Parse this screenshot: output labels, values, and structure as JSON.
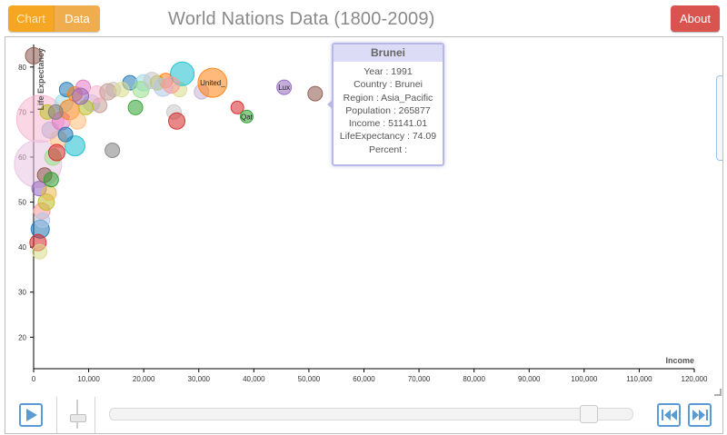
{
  "header": {
    "tabs": [
      {
        "label": "Chart",
        "active": true
      },
      {
        "label": "Data",
        "active": false
      }
    ],
    "title": "World Nations Data (1800-2009)",
    "about_label": "About"
  },
  "tooltip": {
    "country_title": "Brunei",
    "lines": [
      "Year : 1991",
      "Country : Brunei",
      "Region : Asia_Pacific",
      "Population : 265877",
      "Income : 51141.01",
      "LifeExpectancy : 74.09",
      "Percent :"
    ]
  },
  "chart_data": {
    "type": "scatter",
    "title": "World Nations Data (1800-2009)",
    "xlabel": "Income",
    "ylabel": "Life Expectancy",
    "xlim": [
      0,
      120000
    ],
    "ylim": [
      13,
      85
    ],
    "xticks": [
      "0",
      "10,000",
      "20,000",
      "30,000",
      "40,000",
      "50,000",
      "60,000",
      "70,000",
      "80,000",
      "90,000",
      "100,000",
      "110,000",
      "120,000"
    ],
    "xtick_values": [
      0,
      10000,
      20000,
      30000,
      40000,
      50000,
      60000,
      70000,
      80000,
      90000,
      100000,
      110000,
      120000
    ],
    "yticks": [
      "20",
      "30",
      "40",
      "50",
      "60",
      "70",
      "80"
    ],
    "ytick_values": [
      20,
      30,
      40,
      50,
      60,
      70,
      80
    ],
    "points": [
      {
        "x": 0,
        "y": 82.5,
        "r": 9,
        "color": "#8c564b"
      },
      {
        "x": 1200,
        "y": 68.5,
        "r": 26,
        "color": "#f7b6d2"
      },
      {
        "x": 800,
        "y": 58.5,
        "r": 26,
        "color": "#e7c3e0"
      },
      {
        "x": 2500,
        "y": 70,
        "r": 8,
        "color": "#bcbd22"
      },
      {
        "x": 5500,
        "y": 72,
        "r": 10,
        "color": "#9edae5"
      },
      {
        "x": 6000,
        "y": 75,
        "r": 8,
        "color": "#1f77b4"
      },
      {
        "x": 7500,
        "y": 74,
        "r": 8,
        "color": "#ff7f0e"
      },
      {
        "x": 9000,
        "y": 75.5,
        "r": 8,
        "color": "#e377c2"
      },
      {
        "x": 10500,
        "y": 72,
        "r": 9,
        "color": "#aec7e8"
      },
      {
        "x": 12000,
        "y": 71.5,
        "r": 8,
        "color": "#c49c94"
      },
      {
        "x": 14500,
        "y": 75,
        "r": 8,
        "color": "#c7c7c7"
      },
      {
        "x": 17500,
        "y": 76.5,
        "r": 8,
        "color": "#1f77b4"
      },
      {
        "x": 18500,
        "y": 71,
        "r": 8,
        "color": "#2ca02c"
      },
      {
        "x": 20000,
        "y": 76.5,
        "r": 9,
        "color": "#9edae5"
      },
      {
        "x": 22500,
        "y": 76.5,
        "r": 8,
        "color": "#bcbd22"
      },
      {
        "x": 24000,
        "y": 77,
        "r": 8,
        "color": "#ff7f0e"
      },
      {
        "x": 25500,
        "y": 70,
        "r": 8,
        "color": "#c7c7c7"
      },
      {
        "x": 26000,
        "y": 68,
        "r": 9,
        "color": "#d62728"
      },
      {
        "x": 26500,
        "y": 75,
        "r": 8,
        "color": "#dbdb8d"
      },
      {
        "x": 27000,
        "y": 78.5,
        "r": 13,
        "color": "#17becf"
      },
      {
        "x": 30500,
        "y": 74.5,
        "r": 8,
        "color": "#c5b0d5"
      },
      {
        "x": 32500,
        "y": 76.5,
        "r": 16,
        "color": "#ff7f0e",
        "label": "United_"
      },
      {
        "x": 37000,
        "y": 71,
        "r": 7,
        "color": "#d62728"
      },
      {
        "x": 38700,
        "y": 69,
        "r": 7,
        "color": "#2ca02c",
        "label": "Qat"
      },
      {
        "x": 45500,
        "y": 75.5,
        "r": 8,
        "color": "#9467bd",
        "label": "Lux"
      },
      {
        "x": 51141,
        "y": 74.09,
        "r": 8,
        "color": "#8c564b"
      },
      {
        "x": 14300,
        "y": 61.5,
        "r": 8,
        "color": "#7f7f7f"
      },
      {
        "x": 7500,
        "y": 62.5,
        "r": 11,
        "color": "#17becf"
      },
      {
        "x": 1500,
        "y": 48,
        "r": 9,
        "color": "#ff9896"
      },
      {
        "x": 1200,
        "y": 44,
        "r": 10,
        "color": "#1f77b4"
      },
      {
        "x": 800,
        "y": 41,
        "r": 9,
        "color": "#d62728"
      },
      {
        "x": 1100,
        "y": 39,
        "r": 8,
        "color": "#dbdb8d"
      },
      {
        "x": 2300,
        "y": 50,
        "r": 9,
        "color": "#bcbd22"
      },
      {
        "x": 3500,
        "y": 60,
        "r": 9,
        "color": "#98df8a"
      },
      {
        "x": 4500,
        "y": 64,
        "r": 9,
        "color": "#ffbb78"
      },
      {
        "x": 3000,
        "y": 66,
        "r": 9,
        "color": "#c5b0d5"
      },
      {
        "x": 5000,
        "y": 68,
        "r": 10,
        "color": "#e377c2"
      },
      {
        "x": 6500,
        "y": 70.5,
        "r": 11,
        "color": "#ff7f0e"
      },
      {
        "x": 8000,
        "y": 68,
        "r": 9,
        "color": "#ffbb78"
      },
      {
        "x": 11500,
        "y": 74,
        "r": 9,
        "color": "#f7b6d2"
      },
      {
        "x": 13500,
        "y": 74.5,
        "r": 9,
        "color": "#c49c94"
      },
      {
        "x": 16000,
        "y": 75,
        "r": 8,
        "color": "#dbdb8d"
      },
      {
        "x": 19500,
        "y": 75,
        "r": 9,
        "color": "#98df8a"
      },
      {
        "x": 21500,
        "y": 77,
        "r": 9,
        "color": "#c7c7c7"
      },
      {
        "x": 23500,
        "y": 75.5,
        "r": 10,
        "color": "#aec7e8"
      },
      {
        "x": 25000,
        "y": 76,
        "r": 9,
        "color": "#ff9896"
      },
      {
        "x": 1000,
        "y": 53,
        "r": 8,
        "color": "#9467bd"
      },
      {
        "x": 2000,
        "y": 56,
        "r": 8,
        "color": "#8c564b"
      },
      {
        "x": 2800,
        "y": 52,
        "r": 8,
        "color": "#e7ba52"
      },
      {
        "x": 1600,
        "y": 46,
        "r": 8,
        "color": "#aec7e8"
      },
      {
        "x": 3200,
        "y": 55,
        "r": 8,
        "color": "#2ca02c"
      },
      {
        "x": 4200,
        "y": 61,
        "r": 9,
        "color": "#d62728"
      },
      {
        "x": 5800,
        "y": 65,
        "r": 8,
        "color": "#1f77b4"
      },
      {
        "x": 4000,
        "y": 70,
        "r": 8,
        "color": "#7f7f7f"
      },
      {
        "x": 9500,
        "y": 71,
        "r": 8,
        "color": "#bcbd22"
      },
      {
        "x": 8500,
        "y": 73.5,
        "r": 9,
        "color": "#9467bd"
      }
    ]
  },
  "controls": {
    "play_icon": "play-icon",
    "first_icon": "skip-back-icon",
    "last_icon": "skip-forward-icon",
    "year_position": 0.906
  }
}
